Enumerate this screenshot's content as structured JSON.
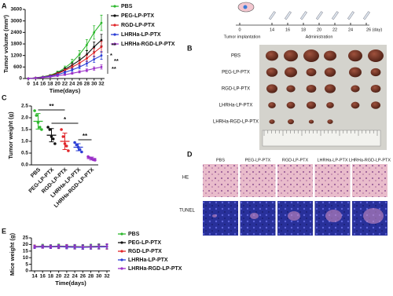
{
  "chart_data": [
    {
      "panel": "A",
      "type": "line",
      "ylabel": "Tumor volume (mm³)",
      "xlabel": "Time(days)",
      "categories": [
        "0",
        "14",
        "16",
        "18",
        "20",
        "22",
        "24",
        "26",
        "28",
        "30",
        "32"
      ],
      "ylim": [
        0,
        3600
      ],
      "yticks": [
        0,
        600,
        1200,
        1800,
        2400,
        3000,
        3600
      ],
      "series": [
        {
          "name": "PBS",
          "color": "#2db82d",
          "values": [
            0,
            40,
            90,
            170,
            320,
            550,
            850,
            1250,
            1750,
            2400,
            2900
          ],
          "errors": [
            0,
            10,
            20,
            40,
            60,
            100,
            150,
            200,
            280,
            350,
            400
          ]
        },
        {
          "name": "PEG-LP-PTX",
          "color": "#111111",
          "values": [
            0,
            35,
            80,
            150,
            280,
            470,
            700,
            950,
            1250,
            1650,
            2000
          ],
          "errors": [
            0,
            10,
            20,
            30,
            50,
            80,
            110,
            150,
            200,
            250,
            300
          ]
        },
        {
          "name": "RGD-LP-PTX",
          "color": "#e0262a",
          "values": [
            0,
            35,
            75,
            140,
            250,
            420,
            600,
            800,
            1050,
            1350,
            1650
          ],
          "errors": [
            0,
            10,
            15,
            30,
            50,
            70,
            100,
            130,
            170,
            220,
            280
          ]
        },
        {
          "name": "LHRHa-LP-PTX",
          "color": "#2c3fd6",
          "values": [
            0,
            30,
            70,
            120,
            200,
            320,
            450,
            600,
            780,
            1000,
            1200
          ],
          "errors": [
            0,
            8,
            15,
            25,
            40,
            60,
            80,
            100,
            130,
            160,
            200
          ]
        },
        {
          "name": "LHRHa-RGD-LP-PTX",
          "color": "#9b30c8",
          "values": [
            0,
            25,
            55,
            90,
            140,
            200,
            270,
            350,
            430,
            520,
            600
          ],
          "errors": [
            0,
            5,
            10,
            15,
            25,
            35,
            45,
            60,
            70,
            90,
            110
          ]
        }
      ],
      "annotations": [
        "**",
        "*",
        "**",
        "**"
      ]
    },
    {
      "panel": "C",
      "type": "dot",
      "ylabel": "Tumor weight (g)",
      "categories": [
        "PBS",
        "PEG-LP-PTX",
        "RGD-LP-PTX",
        "LHRHa-LP-PTX",
        "LHRHa-RGD-LP-PTX"
      ],
      "colors": [
        "#2db82d",
        "#111111",
        "#e0262a",
        "#2c3fd6",
        "#9b30c8"
      ],
      "ylim": [
        0,
        2.5
      ],
      "yticks": [
        {
          "value": 0,
          "label": "0.0"
        },
        0.5,
        {
          "value": 1,
          "label": "1.0"
        },
        1.5,
        {
          "value": 2,
          "label": "2.0"
        },
        2.5
      ],
      "values": [
        1.85,
        1.26,
        1.0,
        0.75,
        0.27
      ],
      "errors": [
        0.33,
        0.28,
        0.35,
        0.15,
        0.06
      ],
      "points": [
        [
          2.3,
          2.1,
          1.8,
          1.6,
          1.5
        ],
        [
          1.6,
          1.5,
          1.2,
          1.1,
          0.9
        ],
        [
          1.5,
          1.2,
          0.9,
          0.8,
          0.6
        ],
        [
          0.95,
          0.85,
          0.75,
          0.65,
          0.55
        ],
        [
          0.35,
          0.3,
          0.28,
          0.22,
          0.2
        ]
      ],
      "annotations": [
        "**",
        "*",
        "**"
      ]
    },
    {
      "panel": "E",
      "type": "line",
      "ylabel": "Mice weight (g)",
      "xlabel": "Time(days)",
      "categories": [
        "14",
        "16",
        "18",
        "20",
        "22",
        "24",
        "26",
        "28",
        "30",
        "32"
      ],
      "ylim": [
        0,
        25
      ],
      "yticks": [
        0,
        5,
        10,
        15,
        20,
        25
      ],
      "series": [
        {
          "name": "PBS",
          "color": "#2db82d",
          "values": [
            18.5,
            18.8,
            18.6,
            18.9,
            18.7,
            18.6,
            18.4,
            18.6,
            18.8,
            18.7
          ],
          "errors": [
            1.2,
            1.4,
            1.3,
            1.5,
            1.4,
            1.5,
            1.6,
            1.7,
            1.8,
            1.8
          ]
        },
        {
          "name": "PEG-LP-PTX",
          "color": "#111111",
          "values": [
            18.2,
            18.4,
            18.3,
            18.5,
            18.2,
            18.1,
            18.0,
            18.2,
            18.3,
            18.4
          ],
          "errors": [
            1.1,
            1.2,
            1.3,
            1.3,
            1.4,
            1.5,
            1.5,
            1.6,
            1.7,
            1.8
          ]
        },
        {
          "name": "RGD-LP-PTX",
          "color": "#e0262a",
          "values": [
            18.6,
            18.3,
            18.5,
            18.2,
            18.4,
            18.0,
            17.9,
            18.1,
            18.2,
            18.3
          ],
          "errors": [
            1.0,
            1.2,
            1.2,
            1.4,
            1.3,
            1.5,
            1.6,
            1.6,
            1.7,
            1.9
          ]
        },
        {
          "name": "LHRHa-LP-PTX",
          "color": "#2c3fd6",
          "values": [
            18.0,
            18.2,
            18.1,
            18.3,
            18.0,
            17.9,
            17.8,
            18.0,
            18.1,
            18.2
          ],
          "errors": [
            1.1,
            1.1,
            1.2,
            1.3,
            1.3,
            1.4,
            1.5,
            1.6,
            1.6,
            1.7
          ]
        },
        {
          "name": "LHRHa-RGD-LP-PTX",
          "color": "#9b30c8",
          "values": [
            18.3,
            18.5,
            18.4,
            18.6,
            18.5,
            18.3,
            18.2,
            18.3,
            18.5,
            18.6
          ],
          "errors": [
            1.2,
            1.3,
            1.3,
            1.4,
            1.5,
            1.6,
            1.6,
            1.7,
            1.8,
            2.0
          ]
        }
      ]
    }
  ],
  "timeline": {
    "days": [
      "0",
      "14",
      "16",
      "18",
      "20",
      "22",
      "24",
      "26 (day)"
    ],
    "labels": [
      "Tumor implantation",
      "Administration"
    ]
  },
  "photo": {
    "panel": "B",
    "rows": [
      "PBS",
      "PEG-LP-PTX",
      "RGD-LP-PTX",
      "LHRHa-LP-PTX",
      "LHRHa-RGD-LP-PTX"
    ]
  },
  "histology": {
    "panel": "D",
    "columns": [
      "PBS",
      "PEG-LP-PTX",
      "RGD-LP-PTX",
      "LHRHa-LP-PTX",
      "LHRHa-RGD-LP-PTX"
    ],
    "rows": [
      "HE",
      "TUNEL"
    ]
  }
}
